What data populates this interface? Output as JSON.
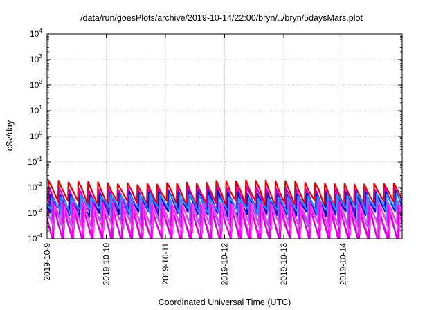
{
  "chart_data": {
    "type": "line",
    "title": "/data/run/goesPlots/archive/2019-10-14/22:00/bryn/../bryn/5daysMars.plot",
    "xlabel": "Coordinated Universal Time (UTC)",
    "ylabel": "cSv/day",
    "y_scale": "log",
    "ylim": [
      0.0001,
      10000
    ],
    "xlim": [
      "2019-10-09 00:00",
      "2019-10-15 00:00"
    ],
    "x_ticks": [
      "2019-10-9",
      "2019-10-10",
      "2019-10-11",
      "2019-10-12",
      "2019-10-13",
      "2019-10-14"
    ],
    "y_ticks": [
      {
        "base": "10",
        "exp": "-4"
      },
      {
        "base": "10",
        "exp": "-3"
      },
      {
        "base": "10",
        "exp": "-2"
      },
      {
        "base": "10",
        "exp": "-1"
      },
      {
        "base": "10",
        "exp": "0"
      },
      {
        "base": "10",
        "exp": "1"
      },
      {
        "base": "10",
        "exp": "2"
      },
      {
        "base": "10",
        "exp": "3"
      },
      {
        "base": "10",
        "exp": "4"
      }
    ],
    "grid": true,
    "legend": "none",
    "pattern": {
      "description": "repeating sawtooth: sharp rise then decay, about 6 cycles per day",
      "cycles_per_day": 6
    },
    "series": [
      {
        "color": "#e00000",
        "peak_range": [
          0.01,
          0.02
        ],
        "trough": 0.0025,
        "phase": 0.0
      },
      {
        "color": "#cc00cc",
        "peak_range": [
          0.006,
          0.012
        ],
        "trough": 0.0012,
        "phase": 0.08
      },
      {
        "color": "#0000cc",
        "peak_range": [
          0.004,
          0.008
        ],
        "trough": 0.0009,
        "phase": 0.16
      },
      {
        "color": "#1e90ff",
        "peak_range": [
          0.003,
          0.006
        ],
        "trough": 0.0012,
        "phase": 0.26
      },
      {
        "color": "#7b68ee",
        "peak_range": [
          0.002,
          0.004
        ],
        "trough": 0.0004,
        "phase": 0.34
      },
      {
        "color": "#ff00ff",
        "peak_range": [
          0.0015,
          0.003
        ],
        "trough": 0.0001,
        "phase": 0.44
      },
      {
        "color": "#dd00dd",
        "peak_range": [
          0.001,
          0.002
        ],
        "trough": 8e-05,
        "phase": 0.52
      },
      {
        "color": "#ee44ee",
        "peak_range": [
          0.0012,
          0.0025
        ],
        "trough": 0.0002,
        "phase": 0.62
      }
    ]
  }
}
